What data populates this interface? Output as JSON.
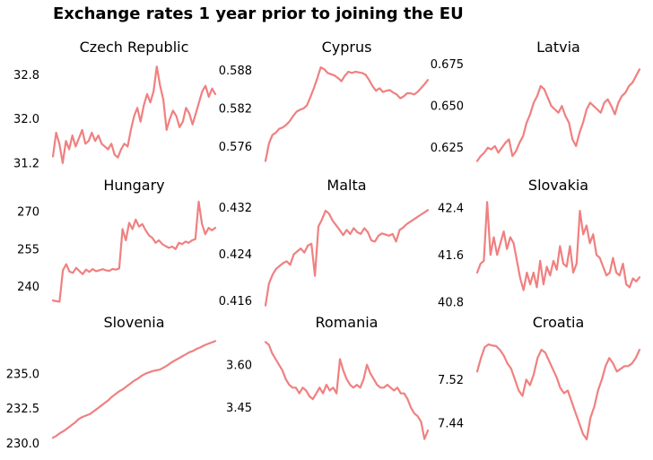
{
  "figure_title": "Exchange rates 1 year prior to joining the EU",
  "line_color": "#f08080",
  "chart_data": [
    {
      "type": "line",
      "title": "Czech Republic",
      "ylim": [
        31.1,
        33.05
      ],
      "yticks": [
        31.2,
        32.0,
        32.8
      ],
      "ytick_labels": [
        "31.2",
        "32.0",
        "32.8"
      ],
      "y": [
        31.32,
        31.75,
        31.55,
        31.2,
        31.6,
        31.45,
        31.7,
        31.5,
        31.65,
        31.8,
        31.55,
        31.6,
        31.75,
        31.6,
        31.7,
        31.55,
        31.5,
        31.45,
        31.55,
        31.35,
        31.3,
        31.45,
        31.55,
        31.5,
        31.8,
        32.05,
        32.2,
        31.95,
        32.25,
        32.45,
        32.3,
        32.5,
        32.95,
        32.6,
        32.35,
        31.8,
        32.0,
        32.15,
        32.05,
        31.85,
        31.95,
        32.2,
        32.1,
        31.9,
        32.1,
        32.3,
        32.5,
        32.6,
        32.4,
        32.55,
        32.45
      ]
    },
    {
      "type": "line",
      "title": "Cyprus",
      "ylim": [
        0.5725,
        0.5895
      ],
      "yticks": [
        0.576,
        0.582,
        0.588
      ],
      "ytick_labels": [
        "0.576",
        "0.582",
        "0.588"
      ],
      "y": [
        0.5737,
        0.5765,
        0.5778,
        0.5782,
        0.5788,
        0.579,
        0.5794,
        0.58,
        0.5808,
        0.5815,
        0.5818,
        0.582,
        0.5825,
        0.5838,
        0.5852,
        0.5868,
        0.5885,
        0.5882,
        0.5876,
        0.5874,
        0.5872,
        0.5868,
        0.5863,
        0.5872,
        0.5878,
        0.5876,
        0.5878,
        0.5877,
        0.5876,
        0.5873,
        0.5865,
        0.5855,
        0.5848,
        0.5852,
        0.5846,
        0.5848,
        0.5849,
        0.5845,
        0.5842,
        0.5836,
        0.5839,
        0.5844,
        0.5844,
        0.5842,
        0.5846,
        0.5852,
        0.5858,
        0.5865
      ]
    },
    {
      "type": "line",
      "title": "Latvia",
      "ylim": [
        0.6125,
        0.677
      ],
      "yticks": [
        0.625,
        0.65,
        0.675
      ],
      "ytick_labels": [
        "0.625",
        "0.650",
        "0.675"
      ],
      "y": [
        0.617,
        0.62,
        0.622,
        0.625,
        0.624,
        0.626,
        0.622,
        0.625,
        0.628,
        0.63,
        0.62,
        0.623,
        0.628,
        0.632,
        0.64,
        0.645,
        0.652,
        0.656,
        0.662,
        0.66,
        0.655,
        0.65,
        0.648,
        0.646,
        0.65,
        0.644,
        0.64,
        0.63,
        0.626,
        0.634,
        0.64,
        0.648,
        0.652,
        0.65,
        0.648,
        0.646,
        0.652,
        0.654,
        0.65,
        0.645,
        0.652,
        0.656,
        0.658,
        0.662,
        0.664,
        0.668,
        0.672
      ]
    },
    {
      "type": "line",
      "title": "Hungary",
      "ylim": [
        232.0,
        275.0
      ],
      "yticks": [
        240,
        255,
        270
      ],
      "ytick_labels": [
        "240",
        "255",
        "270"
      ],
      "y": [
        234.5,
        234.2,
        234.0,
        246.5,
        249.0,
        246.0,
        245.5,
        247.5,
        246.2,
        245.0,
        246.8,
        245.9,
        247.0,
        246.2,
        246.5,
        247.0,
        246.5,
        246.3,
        247.1,
        246.8,
        247.3,
        263.0,
        258.5,
        265.5,
        263.0,
        266.8,
        264.0,
        265.0,
        262.5,
        260.5,
        259.5,
        257.5,
        258.5,
        257.0,
        256.2,
        255.5,
        256.0,
        255.0,
        257.5,
        257.0,
        258.0,
        257.5,
        258.5,
        259.0,
        274.0,
        265.0,
        261.0,
        263.5,
        262.5,
        263.5
      ]
    },
    {
      "type": "line",
      "title": "Malta",
      "ylim": [
        0.415,
        0.4335
      ],
      "yticks": [
        0.416,
        0.424,
        0.432
      ],
      "ytick_labels": [
        "0.416",
        "0.424",
        "0.432"
      ],
      "y": [
        0.4152,
        0.419,
        0.4205,
        0.4215,
        0.422,
        0.4225,
        0.4228,
        0.4222,
        0.424,
        0.4245,
        0.425,
        0.4243,
        0.4255,
        0.4258,
        0.4203,
        0.4288,
        0.43,
        0.4315,
        0.431,
        0.4298,
        0.429,
        0.4282,
        0.4273,
        0.4282,
        0.4275,
        0.4285,
        0.4278,
        0.4275,
        0.4285,
        0.4278,
        0.4264,
        0.4262,
        0.4272,
        0.4276,
        0.4274,
        0.4272,
        0.4275,
        0.4262,
        0.4282,
        0.4286,
        0.4292,
        0.4296,
        0.43,
        0.4304,
        0.4308,
        0.4312,
        0.4316
      ]
    },
    {
      "type": "line",
      "title": "Slovakia",
      "ylim": [
        40.72,
        42.55
      ],
      "yticks": [
        40.8,
        41.6,
        42.4
      ],
      "ytick_labels": [
        "40.8",
        "41.6",
        "42.4"
      ],
      "y": [
        41.3,
        41.45,
        41.5,
        42.5,
        41.6,
        41.9,
        41.6,
        41.8,
        42.0,
        41.7,
        41.9,
        41.8,
        41.5,
        41.2,
        41.0,
        41.3,
        41.1,
        41.3,
        41.05,
        41.5,
        41.1,
        41.4,
        41.25,
        41.5,
        41.35,
        41.75,
        41.45,
        41.4,
        41.75,
        41.3,
        41.45,
        42.35,
        41.95,
        42.1,
        41.8,
        41.95,
        41.6,
        41.55,
        41.4,
        41.25,
        41.3,
        41.55,
        41.3,
        41.25,
        41.45,
        41.1,
        41.05,
        41.2,
        41.15,
        41.22
      ]
    },
    {
      "type": "line",
      "title": "Slovenia",
      "ylim": [
        229.9,
        237.7
      ],
      "yticks": [
        230.0,
        232.5,
        235.0
      ],
      "ytick_labels": [
        "230.0",
        "232.5",
        "235.0"
      ],
      "y": [
        230.4,
        230.55,
        230.75,
        230.9,
        231.1,
        231.3,
        231.5,
        231.75,
        231.9,
        232.0,
        232.1,
        232.3,
        232.5,
        232.7,
        232.9,
        233.1,
        233.35,
        233.55,
        233.75,
        233.9,
        234.1,
        234.3,
        234.5,
        234.65,
        234.85,
        235.0,
        235.1,
        235.2,
        235.25,
        235.3,
        235.45,
        235.6,
        235.8,
        235.95,
        236.1,
        236.25,
        236.4,
        236.55,
        236.65,
        236.8,
        236.9,
        237.05,
        237.15,
        237.25,
        237.35
      ]
    },
    {
      "type": "line",
      "title": "Romania",
      "ylim": [
        3.32,
        3.7
      ],
      "yticks": [
        3.45,
        3.6
      ],
      "ytick_labels": [
        "3.45",
        "3.60"
      ],
      "y": [
        3.68,
        3.67,
        3.64,
        3.62,
        3.6,
        3.58,
        3.55,
        3.53,
        3.52,
        3.52,
        3.5,
        3.52,
        3.51,
        3.49,
        3.48,
        3.5,
        3.52,
        3.5,
        3.53,
        3.51,
        3.52,
        3.5,
        3.62,
        3.58,
        3.55,
        3.53,
        3.52,
        3.53,
        3.52,
        3.55,
        3.6,
        3.57,
        3.55,
        3.53,
        3.52,
        3.52,
        3.53,
        3.52,
        3.51,
        3.52,
        3.5,
        3.5,
        3.48,
        3.45,
        3.43,
        3.42,
        3.4,
        3.34,
        3.37
      ]
    },
    {
      "type": "line",
      "title": "Croatia",
      "ylim": [
        7.4,
        7.6
      ],
      "yticks": [
        7.44,
        7.52
      ],
      "ytick_labels": [
        "7.44",
        "7.52"
      ],
      "y": [
        7.535,
        7.56,
        7.58,
        7.585,
        7.583,
        7.582,
        7.575,
        7.565,
        7.55,
        7.54,
        7.52,
        7.5,
        7.49,
        7.52,
        7.51,
        7.53,
        7.56,
        7.575,
        7.57,
        7.555,
        7.54,
        7.525,
        7.505,
        7.495,
        7.5,
        7.48,
        7.46,
        7.44,
        7.42,
        7.41,
        7.45,
        7.47,
        7.5,
        7.52,
        7.545,
        7.56,
        7.55,
        7.535,
        7.54,
        7.545,
        7.545,
        7.55,
        7.56,
        7.575
      ]
    }
  ]
}
